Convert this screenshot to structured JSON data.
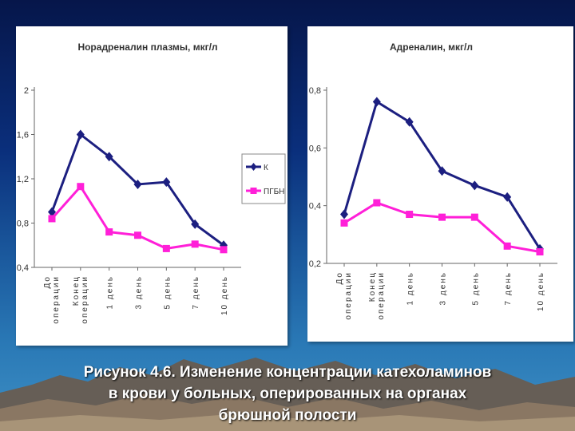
{
  "colors": {
    "series_k": "#1c1f80",
    "series_pgbn": "#ff1fd8"
  },
  "caption": {
    "line1": "Рисунок 4.6. Изменение концентрации катехоламинов",
    "line2": "в крови у больных, оперированных на органах",
    "line3": "брюшной полости"
  },
  "chart_data": [
    {
      "type": "line",
      "title": "Норадреналин плазмы, мкг/л",
      "categories": [
        "До операции",
        "Конец операции",
        "1 день",
        "3 день",
        "5 день",
        "7 день",
        "10 день"
      ],
      "yticks": [
        "0,4",
        "0,8",
        "1,2",
        "1,6",
        "2"
      ],
      "ylim": [
        0.4,
        2.0
      ],
      "grid": false,
      "legend": "right",
      "series": [
        {
          "name": "К",
          "values": [
            0.9,
            1.6,
            1.4,
            1.15,
            1.17,
            0.79,
            0.6
          ]
        },
        {
          "name": "ПГБН",
          "values": [
            0.84,
            1.13,
            0.72,
            0.69,
            0.57,
            0.61,
            0.56
          ]
        }
      ]
    },
    {
      "type": "line",
      "title": "Адреналин, мкг/л",
      "categories": [
        "До операции",
        "Конец операции",
        "1 день",
        "3 день",
        "5 день",
        "7 день",
        "10 день"
      ],
      "yticks": [
        "0,2",
        "0,4",
        "0,6",
        "0,8"
      ],
      "ylim": [
        0.2,
        0.8
      ],
      "grid": false,
      "series": [
        {
          "values": [
            0.37,
            0.76,
            0.69,
            0.52,
            0.47,
            0.43,
            0.25
          ]
        },
        {
          "values": [
            0.34,
            0.41,
            0.37,
            0.36,
            0.36,
            0.26,
            0.24
          ]
        }
      ]
    }
  ]
}
